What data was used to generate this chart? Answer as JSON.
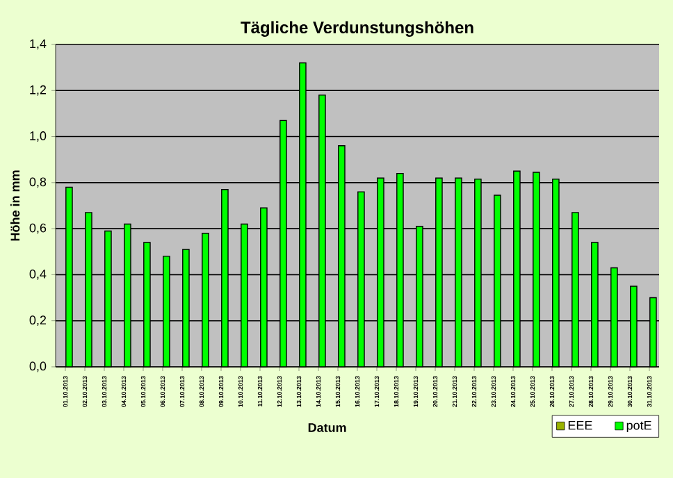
{
  "chart_data": {
    "type": "bar",
    "title": "Tägliche Verdunstungshöhen",
    "xlabel": "Datum",
    "ylabel": "Höhe in mm",
    "categories": [
      "01.10.2013",
      "02.10.2013",
      "03.10.2013",
      "04.10.2013",
      "05.10.2013",
      "06.10.2013",
      "07.10.2013",
      "08.10.2013",
      "09.10.2013",
      "10.10.2013",
      "11.10.2013",
      "12.10.2013",
      "13.10.2013",
      "14.10.2013",
      "15.10.2013",
      "16.10.2013",
      "17.10.2013",
      "18.10.2013",
      "19.10.2013",
      "20.10.2013",
      "21.10.2013",
      "22.10.2013",
      "23.10.2013",
      "24.10.2013",
      "25.10.2013",
      "26.10.2013",
      "27.10.2013",
      "28.10.2013",
      "29.10.2013",
      "30.10.2013",
      "31.10.2013"
    ],
    "series": [
      {
        "name": "EEE",
        "color": "#99b300",
        "values": [
          null,
          null,
          null,
          null,
          null,
          null,
          null,
          null,
          null,
          null,
          null,
          null,
          null,
          null,
          null,
          null,
          null,
          null,
          null,
          null,
          null,
          null,
          null,
          null,
          null,
          null,
          null,
          null,
          null,
          null,
          null
        ]
      },
      {
        "name": "potE",
        "color": "#00ff00",
        "values": [
          0.78,
          0.67,
          0.59,
          0.62,
          0.54,
          0.48,
          0.51,
          0.58,
          0.77,
          0.62,
          0.69,
          1.07,
          1.32,
          1.18,
          0.96,
          0.76,
          0.82,
          0.84,
          0.61,
          0.82,
          0.82,
          0.815,
          0.745,
          0.85,
          0.845,
          0.815,
          0.67,
          0.54,
          0.43,
          0.35,
          0.3
        ]
      }
    ],
    "ylim": [
      0,
      1.4
    ],
    "yticks": [
      {
        "value": 0,
        "label": "0,0"
      },
      {
        "value": 0.2,
        "label": "0,2"
      },
      {
        "value": 0.4,
        "label": "0,4"
      },
      {
        "value": 0.6,
        "label": "0,6"
      },
      {
        "value": 0.8,
        "label": "0,8"
      },
      {
        "value": 1.0,
        "label": "1,0"
      },
      {
        "value": 1.2,
        "label": "1,2"
      },
      {
        "value": 1.4,
        "label": "1,4"
      }
    ],
    "grid": "y",
    "legend": "bottom right"
  }
}
